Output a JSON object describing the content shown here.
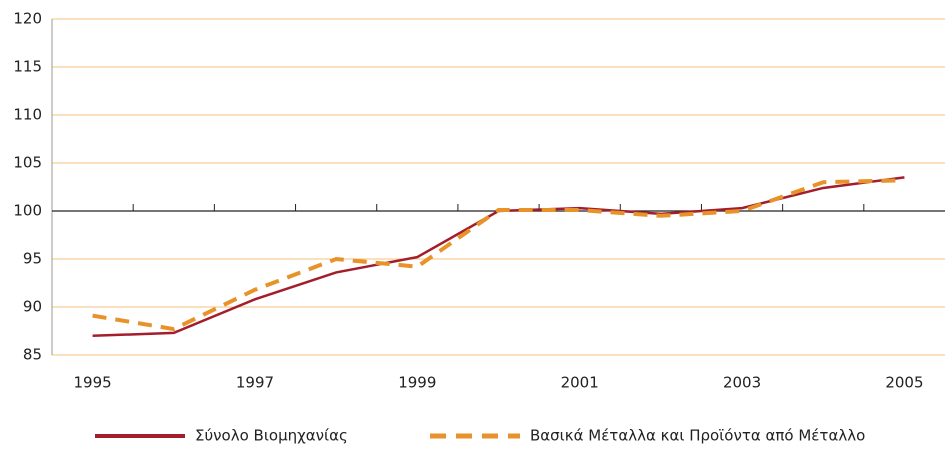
{
  "chart_data": {
    "type": "line",
    "categories": [
      "1995",
      null,
      "1997",
      null,
      "1999",
      null,
      "2001",
      null,
      "2003",
      null,
      "2005"
    ],
    "series": [
      {
        "name": "Σύνολο Βιομηχανίας",
        "color": "#a31d2a",
        "dash": "solid",
        "values": [
          87.0,
          87.3,
          90.8,
          93.6,
          95.2,
          100.0,
          100.3,
          99.7,
          100.3,
          102.4,
          103.5
        ]
      },
      {
        "name": "Βασικά Μέταλλα και Προϊόντα από Μέταλλο",
        "color": "#e8922a",
        "dash": "dashed",
        "values": [
          89.1,
          87.7,
          91.8,
          95.0,
          94.2,
          100.1,
          100.1,
          99.5,
          100.0,
          103.0,
          103.2
        ]
      }
    ],
    "ylim": [
      85,
      120
    ],
    "yticks": [
      85,
      90,
      95,
      100,
      105,
      110,
      115,
      120
    ],
    "x_axis_crosses": 100,
    "grid": true,
    "legend": "bottom"
  }
}
